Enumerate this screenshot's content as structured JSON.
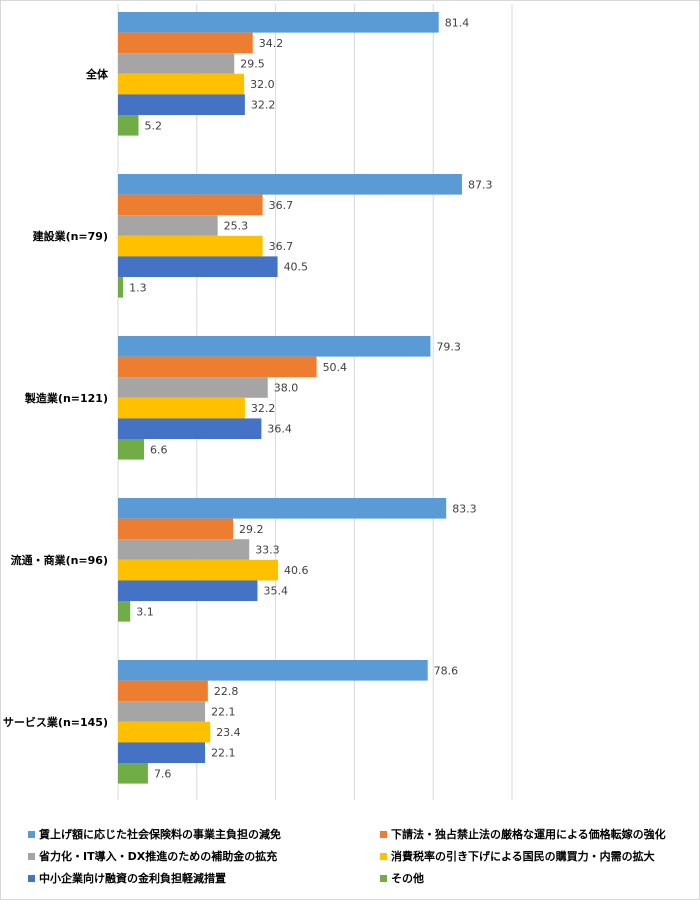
{
  "chart_data": {
    "type": "bar",
    "orientation": "horizontal",
    "categories": [
      "全体",
      "建設業(n=79)",
      "製造業(n=121)",
      "流通・商業(n=96)",
      "サービス業(n=145)"
    ],
    "series": [
      {
        "name": "賃上げ額に応じた社会保険料の事業主負担の減免",
        "color": "#5b9bd5",
        "values": [
          81.4,
          87.3,
          79.3,
          83.3,
          78.6
        ],
        "labels": [
          "81.4",
          "87.3",
          "79.3",
          "83.3",
          "78.6"
        ]
      },
      {
        "name": "下請法・独占禁止法の厳格な運用による価格転嫁の強化",
        "color": "#ed7d31",
        "values": [
          34.2,
          36.7,
          50.4,
          29.2,
          22.8
        ],
        "labels": [
          "34.2",
          "36.7",
          "50.4",
          "29.2",
          "22.8"
        ]
      },
      {
        "name": "省力化・IT導入・DX推進のための補助金の拡充",
        "color": "#a5a5a5",
        "values": [
          29.5,
          25.3,
          38.0,
          33.3,
          22.1
        ],
        "labels": [
          "29.5",
          "25.3",
          "38.0",
          "33.3",
          "22.1"
        ]
      },
      {
        "name": "消費税率の引き下げによる国民の購買力・内需の拡大",
        "color": "#ffc000",
        "values": [
          32.0,
          36.7,
          32.2,
          40.6,
          23.4
        ],
        "labels": [
          "32.0",
          "36.7",
          "32.2",
          "40.6",
          "23.4"
        ]
      },
      {
        "name": "中小企業向け融資の金利負担軽減措置",
        "color": "#4472c4",
        "values": [
          32.2,
          40.5,
          36.4,
          35.4,
          22.1
        ],
        "labels": [
          "32.2",
          "40.5",
          "36.4",
          "35.4",
          "22.1"
        ]
      },
      {
        "name": "その他",
        "color": "#70ad47",
        "values": [
          5.2,
          1.3,
          6.6,
          3.1,
          7.6
        ],
        "labels": [
          "5.2",
          "1.3",
          "6.6",
          "3.1",
          "7.6"
        ]
      }
    ],
    "xlim": [
      0,
      100
    ],
    "gridlines": [
      0,
      20,
      40,
      60,
      80,
      100
    ],
    "grid": true,
    "title": "",
    "xlabel": "",
    "ylabel": "",
    "legend_position": "bottom"
  }
}
